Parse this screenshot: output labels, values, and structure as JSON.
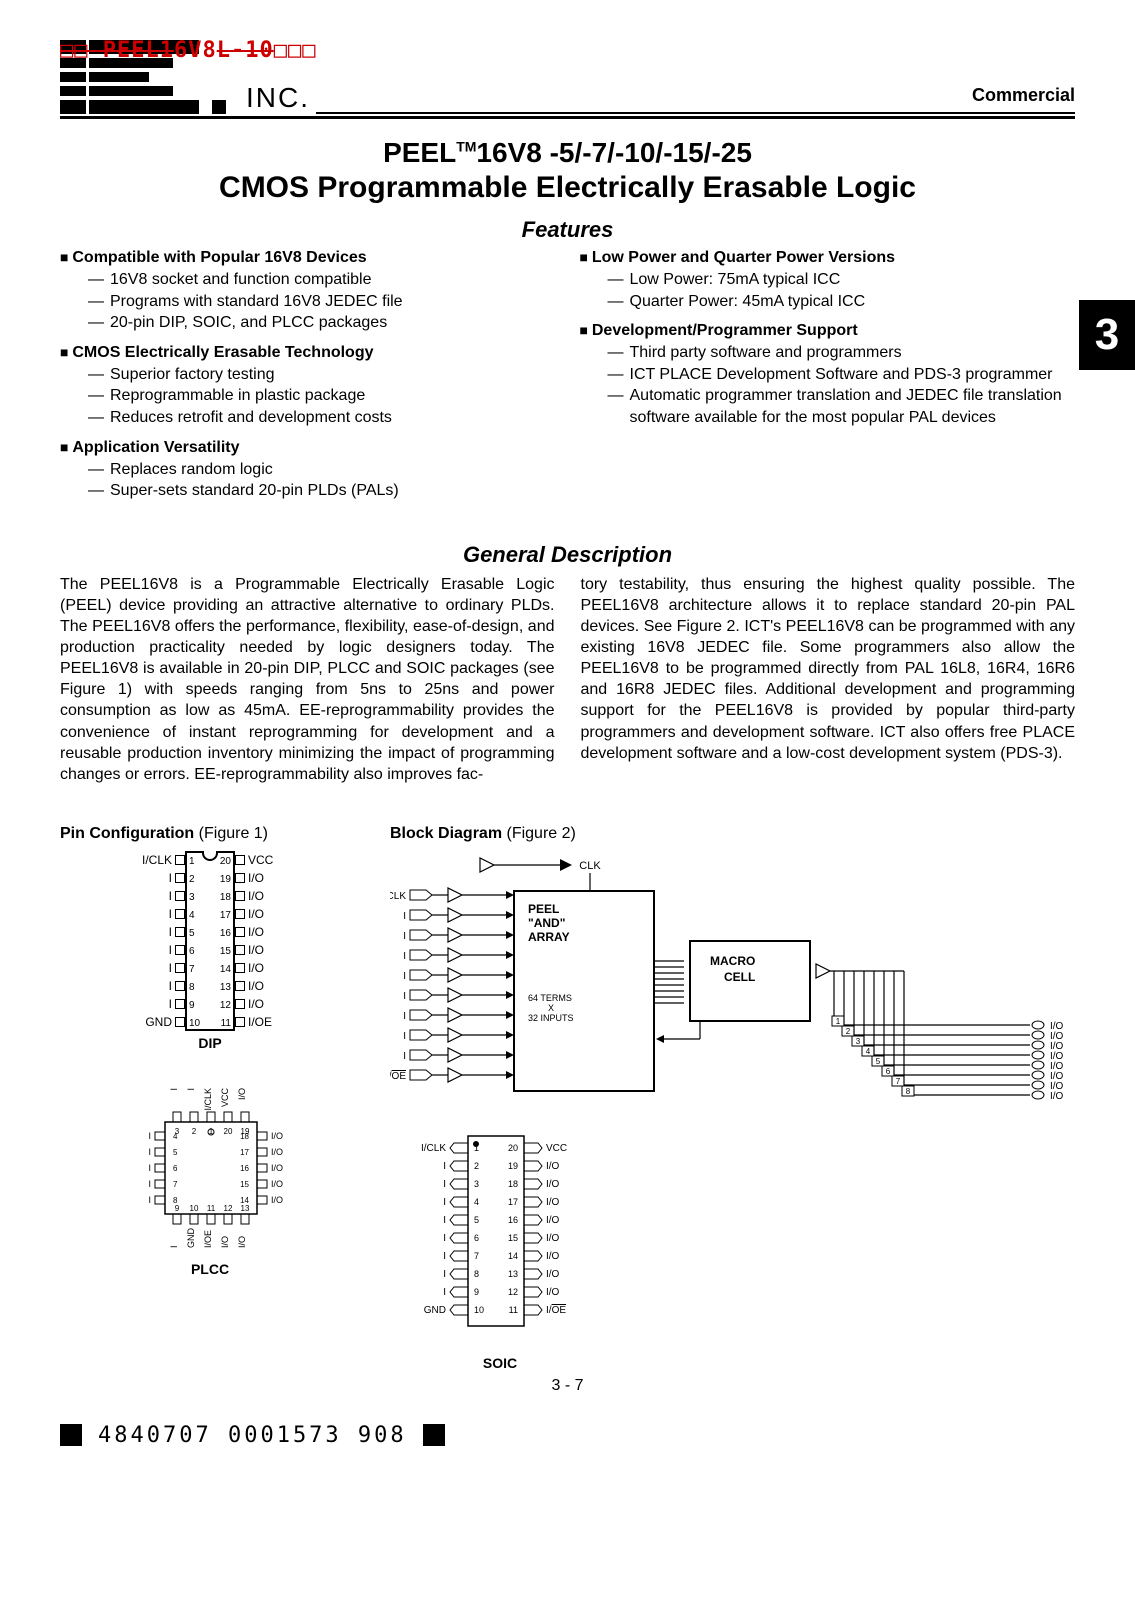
{
  "header": {
    "top_banner_prefix_struck": "□□ PEEL1",
    "top_banner_mid": "6V8",
    "top_banner_suffix_struck": "L-10",
    "top_banner_boxes": "□□□",
    "inc": "INC.",
    "commercial": "Commercial"
  },
  "tab": "3",
  "title": {
    "line1_a": "PEEL",
    "line1_tm": "TM",
    "line1_b": "16V8 -5/-7/-10/-15/-25",
    "line2": "CMOS Programmable Electrically Erasable Logic"
  },
  "features": {
    "heading": "Features",
    "left": [
      {
        "title": "Compatible with Popular 16V8 Devices",
        "items": [
          "16V8 socket and function compatible",
          "Programs with standard 16V8 JEDEC file",
          "20-pin DIP, SOIC, and PLCC packages"
        ]
      },
      {
        "title": "CMOS Electrically Erasable Technology",
        "items": [
          "Superior factory testing",
          "Reprogrammable in plastic package",
          "Reduces retrofit and development costs"
        ]
      },
      {
        "title": "Application Versatility",
        "items": [
          "Replaces random logic",
          "Super-sets standard 20-pin PLDs (PALs)"
        ]
      }
    ],
    "right": [
      {
        "title": "Low Power and Quarter Power Versions",
        "items": [
          "Low Power: 75mA typical ICC",
          "Quarter Power: 45mA typical ICC"
        ]
      },
      {
        "title": "Development/Programmer Support",
        "items": [
          "Third party software and programmers",
          "ICT PLACE Development Software and PDS-3 programmer",
          "Automatic programmer translation and JEDEC file translation software available for the most popular PAL devices"
        ]
      }
    ]
  },
  "general": {
    "heading": "General Description",
    "col1": "The PEEL16V8 is a Programmable Electrically Erasable Logic (PEEL) device providing an attractive alternative to ordinary PLDs. The PEEL16V8 offers the performance, flexibility, ease-of-design, and production practicality needed by logic designers today. The PEEL16V8 is available in 20-pin DIP, PLCC and SOIC packages (see Figure 1) with speeds ranging from 5ns to 25ns and power consumption as low as 45mA. EE-reprogrammability provides the convenience of instant reprogramming for development and a reusable production inventory minimizing the impact of programming changes or errors. EE-reprogrammability also improves fac-",
    "col2": "tory testability, thus ensuring the highest quality possible. The PEEL16V8 architecture allows it to replace standard 20-pin PAL devices. See Figure 2. ICT's PEEL16V8 can be programmed with any existing 16V8 JEDEC file. Some programmers also allow the PEEL16V8 to be programmed directly from PAL 16L8, 16R4, 16R6 and 16R8 JEDEC files. Additional development and programming support for the PEEL16V8 is provided by popular third-party programmers and development software. ICT also offers free PLACE development software and a low-cost development system (PDS-3)."
  },
  "figures": {
    "pin_title_a": "Pin Configuration",
    "pin_title_b": "(Figure 1)",
    "block_title_a": "Block Diagram",
    "block_title_b": "(Figure 2)",
    "dip_label": "DIP",
    "plcc_label": "PLCC",
    "soic_label": "SOIC",
    "dip": {
      "left": [
        {
          "n": "1",
          "l": "I/CLK"
        },
        {
          "n": "2",
          "l": "I"
        },
        {
          "n": "3",
          "l": "I"
        },
        {
          "n": "4",
          "l": "I"
        },
        {
          "n": "5",
          "l": "I"
        },
        {
          "n": "6",
          "l": "I"
        },
        {
          "n": "7",
          "l": "I"
        },
        {
          "n": "8",
          "l": "I"
        },
        {
          "n": "9",
          "l": "I"
        },
        {
          "n": "10",
          "l": "GND"
        }
      ],
      "right": [
        {
          "n": "20",
          "l": "VCC"
        },
        {
          "n": "19",
          "l": "I/O"
        },
        {
          "n": "18",
          "l": "I/O"
        },
        {
          "n": "17",
          "l": "I/O"
        },
        {
          "n": "16",
          "l": "I/O"
        },
        {
          "n": "15",
          "l": "I/O"
        },
        {
          "n": "14",
          "l": "I/O"
        },
        {
          "n": "13",
          "l": "I/O"
        },
        {
          "n": "12",
          "l": "I/O"
        },
        {
          "n": "11",
          "l": "I/OE"
        }
      ]
    },
    "plcc": {
      "top": [
        "I",
        "I",
        "I/CLK",
        "VCC",
        "I/O"
      ],
      "top_nums": [
        "3",
        "2",
        "1",
        "20",
        "19"
      ],
      "left": [
        {
          "n": "4",
          "l": "I"
        },
        {
          "n": "5",
          "l": "I"
        },
        {
          "n": "6",
          "l": "I"
        },
        {
          "n": "7",
          "l": "I"
        },
        {
          "n": "8",
          "l": "I"
        }
      ],
      "right": [
        {
          "n": "18",
          "l": "I/O"
        },
        {
          "n": "17",
          "l": "I/O"
        },
        {
          "n": "16",
          "l": "I/O"
        },
        {
          "n": "15",
          "l": "I/O"
        },
        {
          "n": "14",
          "l": "I/O"
        }
      ],
      "bot_nums": [
        "9",
        "10",
        "11",
        "12",
        "13"
      ],
      "bot": [
        "I",
        "GND",
        "I/OE",
        "I/O",
        "I/O"
      ]
    },
    "soic": {
      "left": [
        {
          "n": "1",
          "l": "I/CLK"
        },
        {
          "n": "2",
          "l": "I"
        },
        {
          "n": "3",
          "l": "I"
        },
        {
          "n": "4",
          "l": "I"
        },
        {
          "n": "5",
          "l": "I"
        },
        {
          "n": "6",
          "l": "I"
        },
        {
          "n": "7",
          "l": "I"
        },
        {
          "n": "8",
          "l": "I"
        },
        {
          "n": "9",
          "l": "I"
        },
        {
          "n": "10",
          "l": "GND"
        }
      ],
      "right": [
        {
          "n": "20",
          "l": "VCC"
        },
        {
          "n": "19",
          "l": "I/O"
        },
        {
          "n": "18",
          "l": "I/O"
        },
        {
          "n": "17",
          "l": "I/O"
        },
        {
          "n": "16",
          "l": "I/O"
        },
        {
          "n": "15",
          "l": "I/O"
        },
        {
          "n": "14",
          "l": "I/O"
        },
        {
          "n": "13",
          "l": "I/O"
        },
        {
          "n": "12",
          "l": "I/O"
        },
        {
          "n": "11",
          "l": "I/OE"
        }
      ]
    },
    "block": {
      "clk": "CLK",
      "left_inputs": [
        "I/CLK",
        "I",
        "I",
        "I",
        "I",
        "I",
        "I",
        "I",
        "I",
        "I/OE"
      ],
      "and_array_l1": "PEEL",
      "and_array_l2": "\"AND\"",
      "and_array_l3": "ARRAY",
      "terms_l1": "64 TERMS",
      "terms_l2": "X",
      "terms_l3": "32 INPUTS",
      "macro_cell_l1": "MACRO",
      "macro_cell_l2": "CELL",
      "io_label": "I/O",
      "nums": [
        "1",
        "2",
        "3",
        "4",
        "5",
        "6",
        "7",
        "8"
      ]
    }
  },
  "footer": {
    "code": "4840707  0001573  908",
    "page": "3 - 7"
  },
  "style": {
    "text_color": "#000000",
    "accent": "#c00000",
    "background": "#ffffff"
  }
}
